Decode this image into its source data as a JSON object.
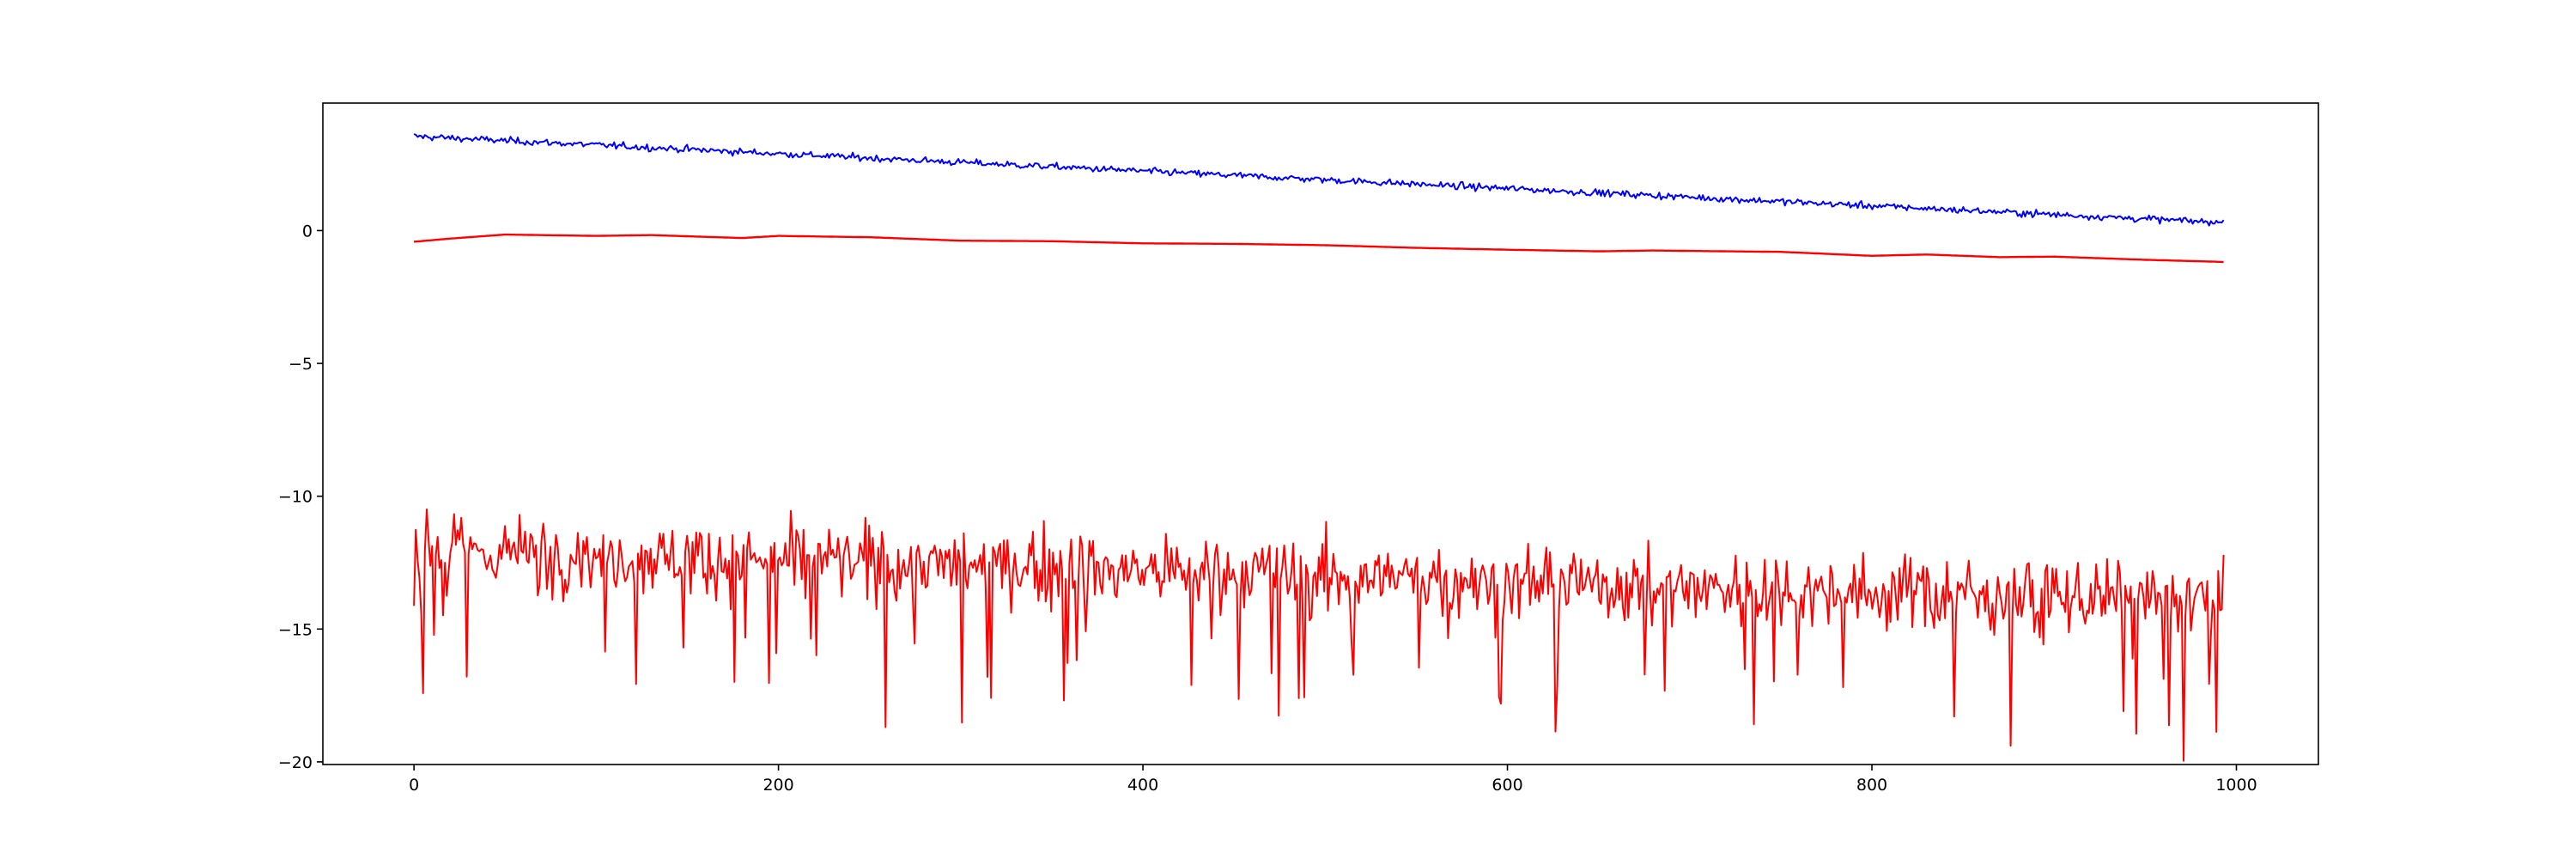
{
  "chart_data": {
    "type": "line",
    "title": "",
    "xlabel": "",
    "ylabel": "",
    "xlim": [
      -50,
      1045
    ],
    "ylim": [
      -20.1,
      4.8
    ],
    "grid": false,
    "legend": "none",
    "x_ticks": [
      {
        "value": 0,
        "label": "0"
      },
      {
        "value": 200,
        "label": "200"
      },
      {
        "value": 400,
        "label": "400"
      },
      {
        "value": 600,
        "label": "600"
      },
      {
        "value": 800,
        "label": "800"
      },
      {
        "value": 1000,
        "label": "1000"
      }
    ],
    "y_ticks": [
      {
        "value": 0,
        "label": "0"
      },
      {
        "value": -5,
        "label": "−5"
      },
      {
        "value": -10,
        "label": "−10"
      },
      {
        "value": -15,
        "label": "−15"
      },
      {
        "value": -20,
        "label": "−20"
      }
    ],
    "n_points": 995,
    "series": [
      {
        "color": "#0000ff",
        "style": "noisy",
        "x": [
          0,
          993
        ],
        "y": [
          3.55,
          0.3
        ],
        "noise": 0.09,
        "approximate": true
      },
      {
        "color": "#ff0000",
        "style": "smooth",
        "x": [
          0,
          20,
          50,
          100,
          130,
          180,
          200,
          250,
          300,
          350,
          400,
          450,
          500,
          550,
          600,
          650,
          680,
          720,
          750,
          800,
          830,
          870,
          900,
          950,
          993
        ],
        "y": [
          -0.42,
          -0.3,
          -0.15,
          -0.2,
          -0.17,
          -0.28,
          -0.2,
          -0.25,
          -0.38,
          -0.4,
          -0.48,
          -0.5,
          -0.55,
          -0.65,
          -0.72,
          -0.78,
          -0.75,
          -0.78,
          -0.8,
          -0.95,
          -0.9,
          -1.0,
          -0.98,
          -1.1,
          -1.18
        ],
        "approximate": true
      },
      {
        "color": "#ff0000",
        "style": "noisy",
        "x": [
          0,
          993
        ],
        "y": [
          -12.0,
          -14.0
        ],
        "noise": 0.95,
        "approximate": true
      }
    ]
  }
}
